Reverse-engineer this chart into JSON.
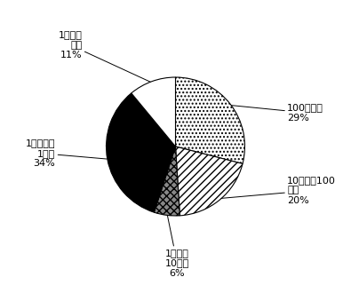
{
  "slices": [
    {
      "pct": 29,
      "hatch": "....",
      "facecolor": "#ffffff",
      "edgecolor": "#000000"
    },
    {
      "pct": 20,
      "hatch": "////",
      "facecolor": "#ffffff",
      "edgecolor": "#000000"
    },
    {
      "pct": 6,
      "hatch": "xxxx",
      "facecolor": "#888888",
      "edgecolor": "#000000"
    },
    {
      "pct": 34,
      "hatch": "",
      "facecolor": "#000000",
      "edgecolor": "#000000"
    },
    {
      "pct": 11,
      "hatch": "",
      "facecolor": "#ffffff",
      "edgecolor": "#000000"
    }
  ],
  "label_texts": [
    "100億円～\n29%",
    "10億円～100\n億円\n20%",
    "1億円～\n10億円\n6%",
    "1千万円～\n1億円\n34%",
    "1千万円\n以下\n11%"
  ],
  "label_coords": [
    [
      1.32,
      0.4,
      "left"
    ],
    [
      1.32,
      -0.52,
      "left"
    ],
    [
      0.02,
      -1.38,
      "center"
    ],
    [
      -1.42,
      -0.08,
      "right"
    ],
    [
      -1.1,
      1.2,
      "right"
    ]
  ],
  "start_angle": 90,
  "font_size": 8,
  "background_color": "#ffffff"
}
